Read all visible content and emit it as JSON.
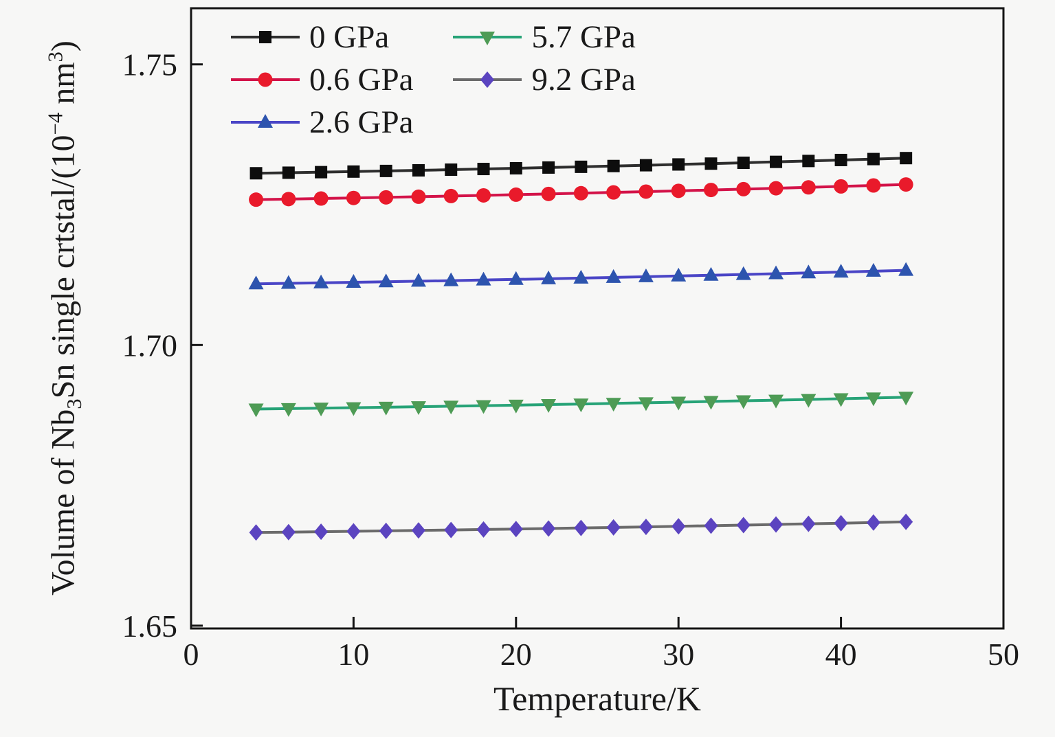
{
  "figure": {
    "background": "#f7f7f6",
    "text_color": "#1a1a1a",
    "frame_color": "#141414"
  },
  "chart_data": {
    "type": "line",
    "title": "",
    "xlabel": "Temperature/K",
    "ylabel": "Volume of Nb3Sn single crtstal/(10-4 nm3)",
    "ylabel_parts": [
      {
        "text": "Volume of Nb"
      },
      {
        "text": "3",
        "script": "sub"
      },
      {
        "text": "Sn single crtstal/(10"
      },
      {
        "text": "−4",
        "script": "sup"
      },
      {
        "text": " nm"
      },
      {
        "text": "3",
        "script": "sup"
      },
      {
        "text": ")"
      }
    ],
    "xlim": [
      0,
      50
    ],
    "ylim": [
      1.6495,
      1.76
    ],
    "xticks": [
      0,
      10,
      20,
      30,
      40,
      50
    ],
    "xtick_labels": [
      "0",
      "10",
      "20",
      "30",
      "40",
      "50"
    ],
    "yticks": [
      1.65,
      1.7,
      1.75
    ],
    "ytick_labels": [
      "1.65",
      "1.70",
      "1.75"
    ],
    "grid": false,
    "legend_position": "top-left-inside",
    "legend_flow": "column",
    "legend_rows": 3,
    "x": [
      4,
      6,
      8,
      10,
      12,
      14,
      16,
      18,
      20,
      22,
      24,
      26,
      28,
      30,
      32,
      34,
      36,
      38,
      40,
      42,
      44
    ],
    "series": [
      {
        "name": "0 GPa",
        "marker": "square",
        "marker_color": "#0d0d0d",
        "line_color": "#2e2e2e",
        "values": [
          1.7306,
          1.7307,
          1.7308,
          1.7309,
          1.73101,
          1.73112,
          1.73124,
          1.73136,
          1.73149,
          1.73162,
          1.73175,
          1.73189,
          1.73203,
          1.73217,
          1.73232,
          1.73247,
          1.73263,
          1.73279,
          1.73296,
          1.73313,
          1.7333
        ]
      },
      {
        "name": "0.6 GPa",
        "marker": "circle",
        "marker_color": "#e91a2b",
        "line_color": "#d31349",
        "values": [
          1.7259,
          1.726,
          1.7261,
          1.7262,
          1.72631,
          1.72642,
          1.72654,
          1.72666,
          1.72679,
          1.72692,
          1.72705,
          1.72719,
          1.72733,
          1.72747,
          1.72762,
          1.72777,
          1.72793,
          1.72809,
          1.72826,
          1.72843,
          1.7286
        ]
      },
      {
        "name": "2.6 GPa",
        "marker": "triangle-up",
        "marker_color": "#2d54ae",
        "line_color": "#4a45c6",
        "values": [
          1.7109,
          1.71099,
          1.71108,
          1.71117,
          1.71126,
          1.71137,
          1.71147,
          1.71158,
          1.71169,
          1.7118,
          1.71192,
          1.71204,
          1.71217,
          1.7123,
          1.71243,
          1.71257,
          1.7127,
          1.71285,
          1.713,
          1.71315,
          1.7133
        ]
      },
      {
        "name": "5.7 GPa",
        "marker": "triangle-down",
        "marker_color": "#4e9b55",
        "line_color": "#27a377",
        "values": [
          1.6886,
          1.68868,
          1.68875,
          1.68883,
          1.68892,
          1.68901,
          1.6891,
          1.68919,
          1.68929,
          1.68939,
          1.68949,
          1.6896,
          1.68971,
          1.68982,
          1.68994,
          1.69006,
          1.69018,
          1.6903,
          1.69043,
          1.69057,
          1.6907
        ]
      },
      {
        "name": "9.2 GPa",
        "marker": "diamond",
        "marker_color": "#5b44c0",
        "line_color": "#6b6b6b",
        "values": [
          1.6666,
          1.66667,
          1.66674,
          1.66681,
          1.66689,
          1.66697,
          1.66705,
          1.66714,
          1.66722,
          1.66731,
          1.66741,
          1.6675,
          1.6676,
          1.66771,
          1.66781,
          1.66792,
          1.66803,
          1.66814,
          1.66826,
          1.66838,
          1.6685
        ]
      }
    ]
  }
}
